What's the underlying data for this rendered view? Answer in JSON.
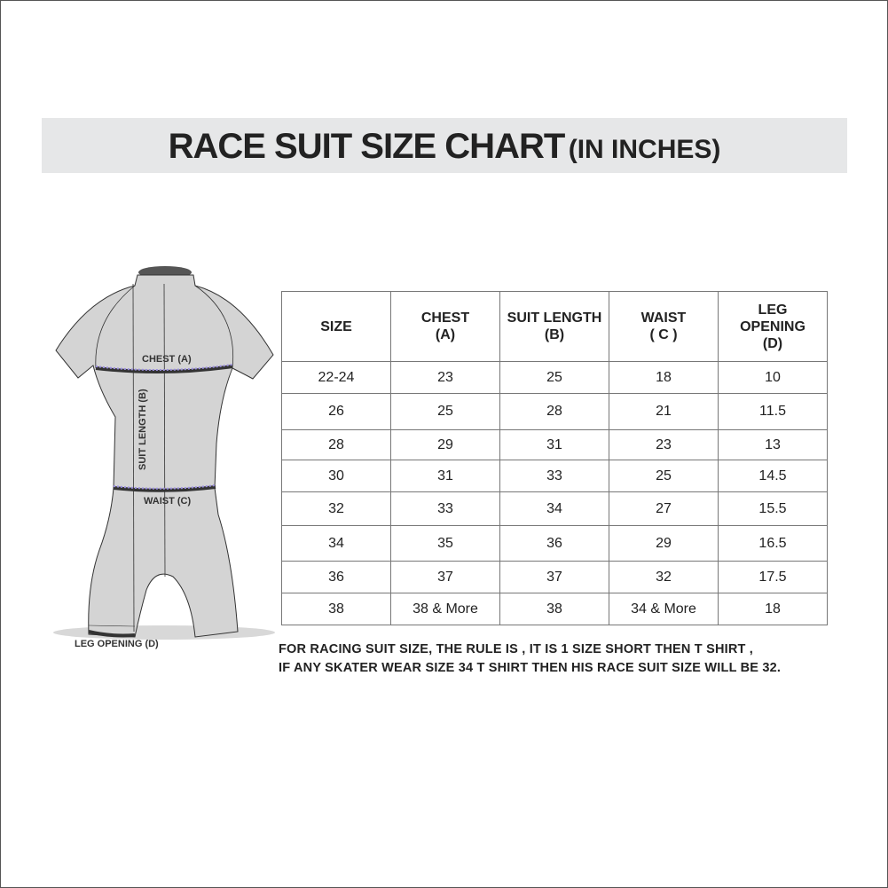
{
  "title": {
    "main": "RACE SUIT SIZE CHART",
    "unit": "(IN INCHES)"
  },
  "diagram_labels": {
    "chest": "CHEST (A)",
    "length": "SUIT LENGTH (B)",
    "waist": "WAIST (C)",
    "leg": "LEG OPENING (D)"
  },
  "table": {
    "headers": [
      [
        "SIZE"
      ],
      [
        "CHEST",
        "(A)"
      ],
      [
        "SUIT LENGTH",
        "(B)"
      ],
      [
        "WAIST",
        "( C )"
      ],
      [
        "LEG",
        "OPENING",
        "(D)"
      ]
    ],
    "rows": [
      [
        "22-24",
        "23",
        "25",
        "18",
        "10"
      ],
      [
        "26",
        "25",
        "28",
        "21",
        "11.5"
      ],
      [
        "28",
        "29",
        "31",
        "23",
        "13"
      ],
      [
        "30",
        "31",
        "33",
        "25",
        "14.5"
      ],
      [
        "32",
        "33",
        "34",
        "27",
        "15.5"
      ],
      [
        "34",
        "35",
        "36",
        "29",
        "16.5"
      ],
      [
        "36",
        "37",
        "37",
        "32",
        "17.5"
      ],
      [
        "38",
        "38 & More",
        "38",
        "34 & More",
        "18"
      ]
    ]
  },
  "note": {
    "line1": "FOR RACING SUIT SIZE, THE RULE IS , IT IS 1 SIZE SHORT THEN T SHIRT ,",
    "line2": "IF ANY SKATER WEAR SIZE 34 T SHIRT THEN HIS RACE SUIT SIZE WILL BE 32."
  },
  "colors": {
    "banner": "#e6e7e8",
    "suit": "#d4d4d4",
    "measure": "#9b8fe0"
  }
}
